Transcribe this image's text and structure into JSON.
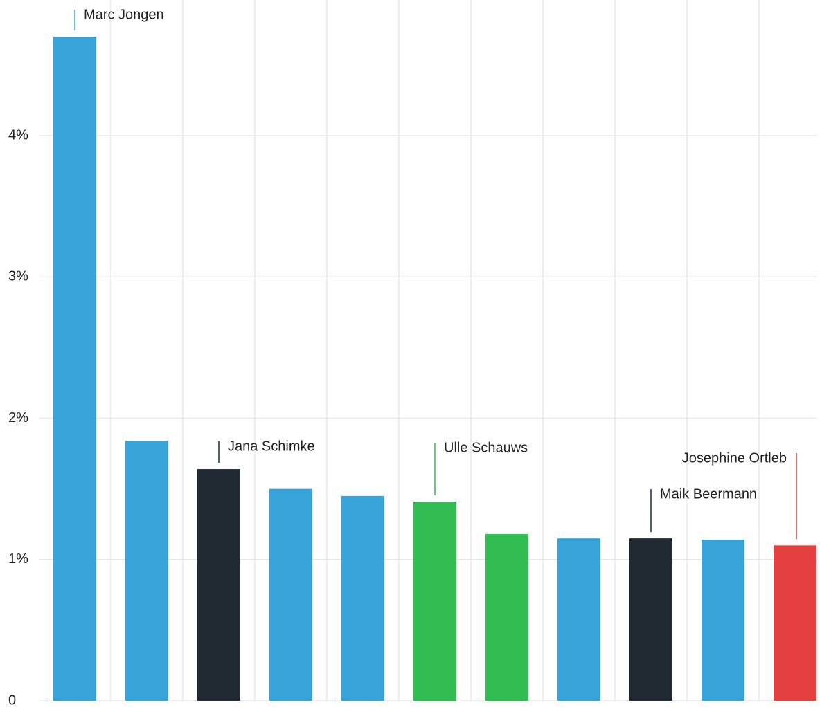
{
  "chart_data": {
    "type": "bar",
    "categories": [
      "Marc Jongen",
      null,
      "Jana Schimke",
      null,
      null,
      "Ulle Schauws",
      null,
      null,
      "Maik Beermann",
      null,
      "Josephine Ortleb"
    ],
    "values": [
      4.7,
      1.84,
      1.64,
      1.5,
      1.45,
      1.41,
      1.18,
      1.15,
      1.15,
      1.14,
      1.1
    ],
    "colors": [
      "#38a3d9",
      "#38a3d9",
      "#212932",
      "#38a3d9",
      "#38a3d9",
      "#31bd52",
      "#31bd52",
      "#38a3d9",
      "#212932",
      "#38a3d9",
      "#e3403f"
    ],
    "ylim": [
      0,
      4.96
    ],
    "yticks": [
      0,
      {
        "value": 1,
        "label": "1%"
      },
      {
        "value": 2,
        "label": "2%"
      },
      {
        "value": 3,
        "label": "3%"
      },
      {
        "value": 4,
        "label": "4%"
      }
    ],
    "grid": true
  }
}
